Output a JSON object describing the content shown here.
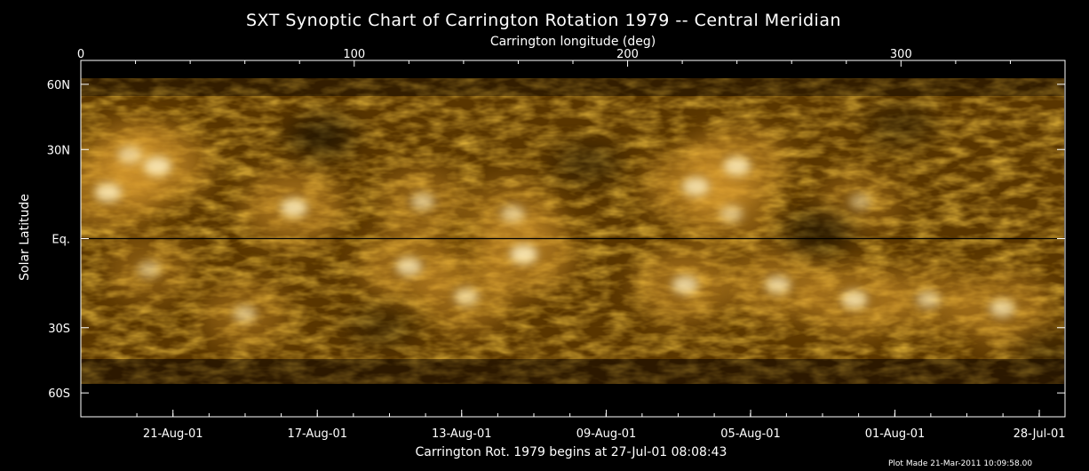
{
  "chart_data": {
    "type": "heatmap",
    "title": "SXT Synoptic Chart of Carrington Rotation 1979 -- Central Meridian",
    "top_axis": {
      "label": "Carrington longitude (deg)",
      "range": [
        0,
        360
      ],
      "ticks": [
        {
          "value": 0,
          "label": "0"
        },
        {
          "value": 100,
          "label": "100"
        },
        {
          "value": 200,
          "label": "200"
        },
        {
          "value": 300,
          "label": "300"
        }
      ]
    },
    "left_axis": {
      "label": "Solar Latitude",
      "range_sin_lat": [
        -1,
        1
      ],
      "ticks": [
        {
          "value": 60,
          "label": "60N"
        },
        {
          "value": 30,
          "label": "30N"
        },
        {
          "value": 0,
          "label": "Eq."
        },
        {
          "value": -30,
          "label": "30S"
        },
        {
          "value": -60,
          "label": "60S"
        }
      ]
    },
    "bottom_axis": {
      "label": "Carrington Rot. 1979 begins at 27-Jul-01 08:08:43",
      "ticks": [
        {
          "lon": 33.7,
          "label": "21-Aug-01"
        },
        {
          "lon": 86.5,
          "label": "17-Aug-01"
        },
        {
          "lon": 139.3,
          "label": "13-Aug-01"
        },
        {
          "lon": 192.2,
          "label": "09-Aug-01"
        },
        {
          "lon": 245.0,
          "label": "05-Aug-01"
        },
        {
          "lon": 297.8,
          "label": "01-Aug-01"
        },
        {
          "lon": 350.6,
          "label": "28-Jul-01"
        }
      ]
    },
    "equator_line": true,
    "colormap": [
      "#000000",
      "#3a2200",
      "#7a4a00",
      "#b67400",
      "#e0a030",
      "#fff0c0"
    ],
    "bright_regions": [
      {
        "lon": 10,
        "lat": 15,
        "intensity": 0.9
      },
      {
        "lon": 28,
        "lat": 24,
        "intensity": 0.95
      },
      {
        "lon": 18,
        "lat": 28,
        "intensity": 0.75
      },
      {
        "lon": 25,
        "lat": -10,
        "intensity": 0.6
      },
      {
        "lon": 78,
        "lat": 10,
        "intensity": 0.9
      },
      {
        "lon": 125,
        "lat": 12,
        "intensity": 0.7
      },
      {
        "lon": 120,
        "lat": -9,
        "intensity": 0.85
      },
      {
        "lon": 141,
        "lat": -19,
        "intensity": 0.75
      },
      {
        "lon": 162,
        "lat": -5,
        "intensity": 0.95
      },
      {
        "lon": 158,
        "lat": 8,
        "intensity": 0.7
      },
      {
        "lon": 60,
        "lat": -25,
        "intensity": 0.65
      },
      {
        "lon": 225,
        "lat": 17,
        "intensity": 0.9
      },
      {
        "lon": 240,
        "lat": 24,
        "intensity": 0.9
      },
      {
        "lon": 238,
        "lat": 8,
        "intensity": 0.65
      },
      {
        "lon": 221,
        "lat": -15,
        "intensity": 0.85
      },
      {
        "lon": 255,
        "lat": -15,
        "intensity": 0.8
      },
      {
        "lon": 283,
        "lat": -20,
        "intensity": 0.85
      },
      {
        "lon": 310,
        "lat": -20,
        "intensity": 0.7
      },
      {
        "lon": 337,
        "lat": -23,
        "intensity": 0.8
      },
      {
        "lon": 285,
        "lat": 12,
        "intensity": 0.55
      }
    ],
    "dark_regions": [
      {
        "lon": 88,
        "lat": 35,
        "intensity": 0.85
      },
      {
        "lon": 185,
        "lat": 25,
        "intensity": 0.6
      },
      {
        "lon": 270,
        "lat": 2,
        "intensity": 0.8
      },
      {
        "lon": 110,
        "lat": -30,
        "intensity": 0.5
      },
      {
        "lon": 300,
        "lat": 40,
        "intensity": 0.55
      },
      {
        "lon": 355,
        "lat": -40,
        "intensity": 0.5
      }
    ]
  },
  "footer_note": "Plot Made 21-Mar-2011 10:09:58.00"
}
